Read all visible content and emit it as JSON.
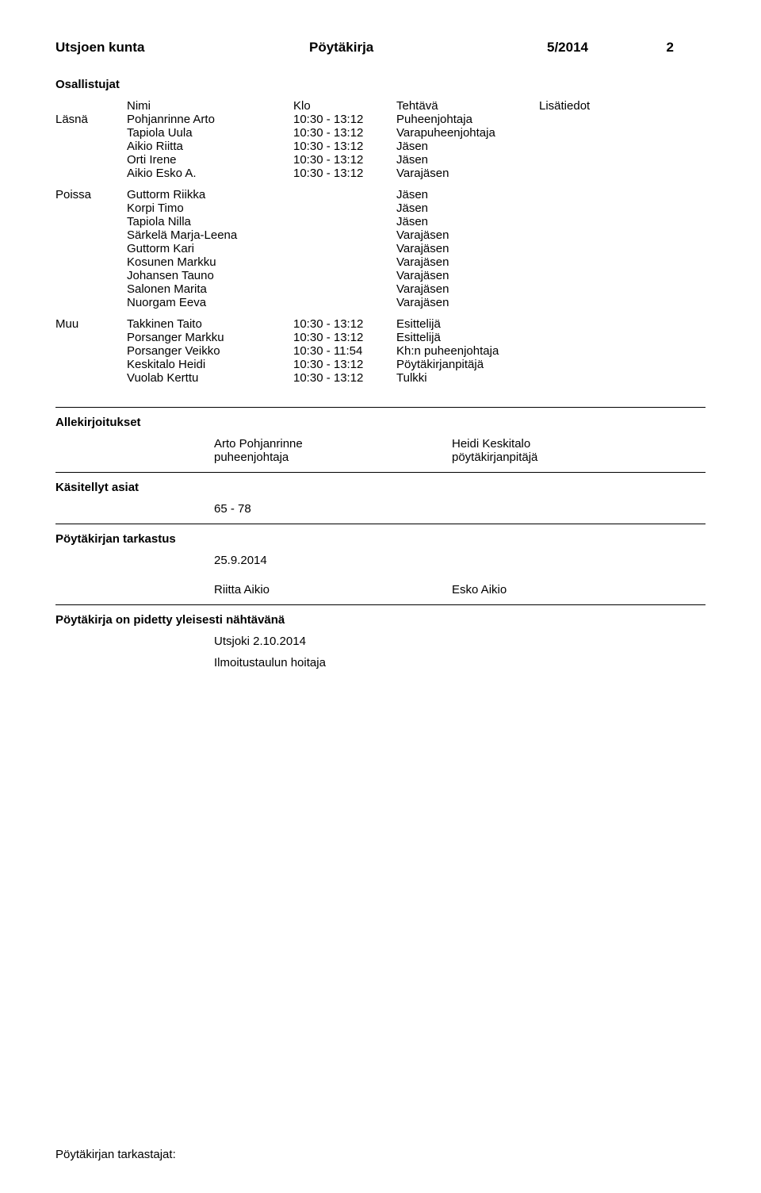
{
  "header": {
    "org": "Utsjoen kunta",
    "doctype": "Pöytäkirja",
    "docnum": "5/2014",
    "pagenum": "2"
  },
  "participants_title": "Osallistujat",
  "cols": {
    "name": "Nimi",
    "time": "Klo",
    "role": "Tehtävä",
    "extra": "Lisätiedot"
  },
  "present": {
    "tag": "Läsnä",
    "rows": [
      {
        "name": "Pohjanrinne Arto",
        "time": "10:30 - 13:12",
        "role": "Puheenjohtaja"
      },
      {
        "name": "Tapiola Uula",
        "time": "10:30 - 13:12",
        "role": "Varapuheenjohtaja"
      },
      {
        "name": "Aikio Riitta",
        "time": "10:30 - 13:12",
        "role": "Jäsen"
      },
      {
        "name": "Orti Irene",
        "time": "10:30 - 13:12",
        "role": "Jäsen"
      },
      {
        "name": "Aikio Esko A.",
        "time": "10:30 - 13:12",
        "role": "Varajäsen"
      }
    ]
  },
  "absent": {
    "tag": "Poissa",
    "rows": [
      {
        "name": "Guttorm Riikka",
        "role": "Jäsen"
      },
      {
        "name": "Korpi Timo",
        "role": "Jäsen"
      },
      {
        "name": "Tapiola Nilla",
        "role": "Jäsen"
      },
      {
        "name": "Särkelä Marja-Leena",
        "role": "Varajäsen"
      },
      {
        "name": "Guttorm Kari",
        "role": "Varajäsen"
      },
      {
        "name": "Kosunen Markku",
        "role": "Varajäsen"
      },
      {
        "name": "Johansen Tauno",
        "role": "Varajäsen"
      },
      {
        "name": "Salonen Marita",
        "role": "Varajäsen"
      },
      {
        "name": "Nuorgam Eeva",
        "role": "Varajäsen"
      }
    ]
  },
  "other": {
    "tag": "Muu",
    "rows": [
      {
        "name": "Takkinen Taito",
        "time": "10:30 - 13:12",
        "role": "Esittelijä"
      },
      {
        "name": "Porsanger Markku",
        "time": "10:30 - 13:12",
        "role": "Esittelijä"
      },
      {
        "name": "Porsanger Veikko",
        "time": "10:30 - 11:54",
        "role": "Kh:n puheenjohtaja"
      },
      {
        "name": "Keskitalo Heidi",
        "time": "10:30 - 13:12",
        "role": "Pöytäkirjanpitäjä"
      },
      {
        "name": "Vuolab Kerttu",
        "time": "10:30 - 13:12",
        "role": "Tulkki"
      }
    ]
  },
  "signatures": {
    "heading": "Allekirjoitukset",
    "left_name": "Arto Pohjanrinne",
    "left_title": "puheenjohtaja",
    "right_name": "Heidi Keskitalo",
    "right_title": "pöytäkirjanpitäjä"
  },
  "handled": {
    "heading": "Käsitellyt asiat",
    "range": "65 - 78"
  },
  "check": {
    "heading": "Pöytäkirjan tarkastus",
    "date": "25.9.2014",
    "left": "Riitta Aikio",
    "right": "Esko Aikio"
  },
  "public": {
    "heading": "Pöytäkirja on pidetty yleisesti nähtävänä",
    "place": "Utsjoki 2.10.2014",
    "who": "Ilmoitustaulun hoitaja"
  },
  "footer": "Pöytäkirjan tarkastajat:"
}
